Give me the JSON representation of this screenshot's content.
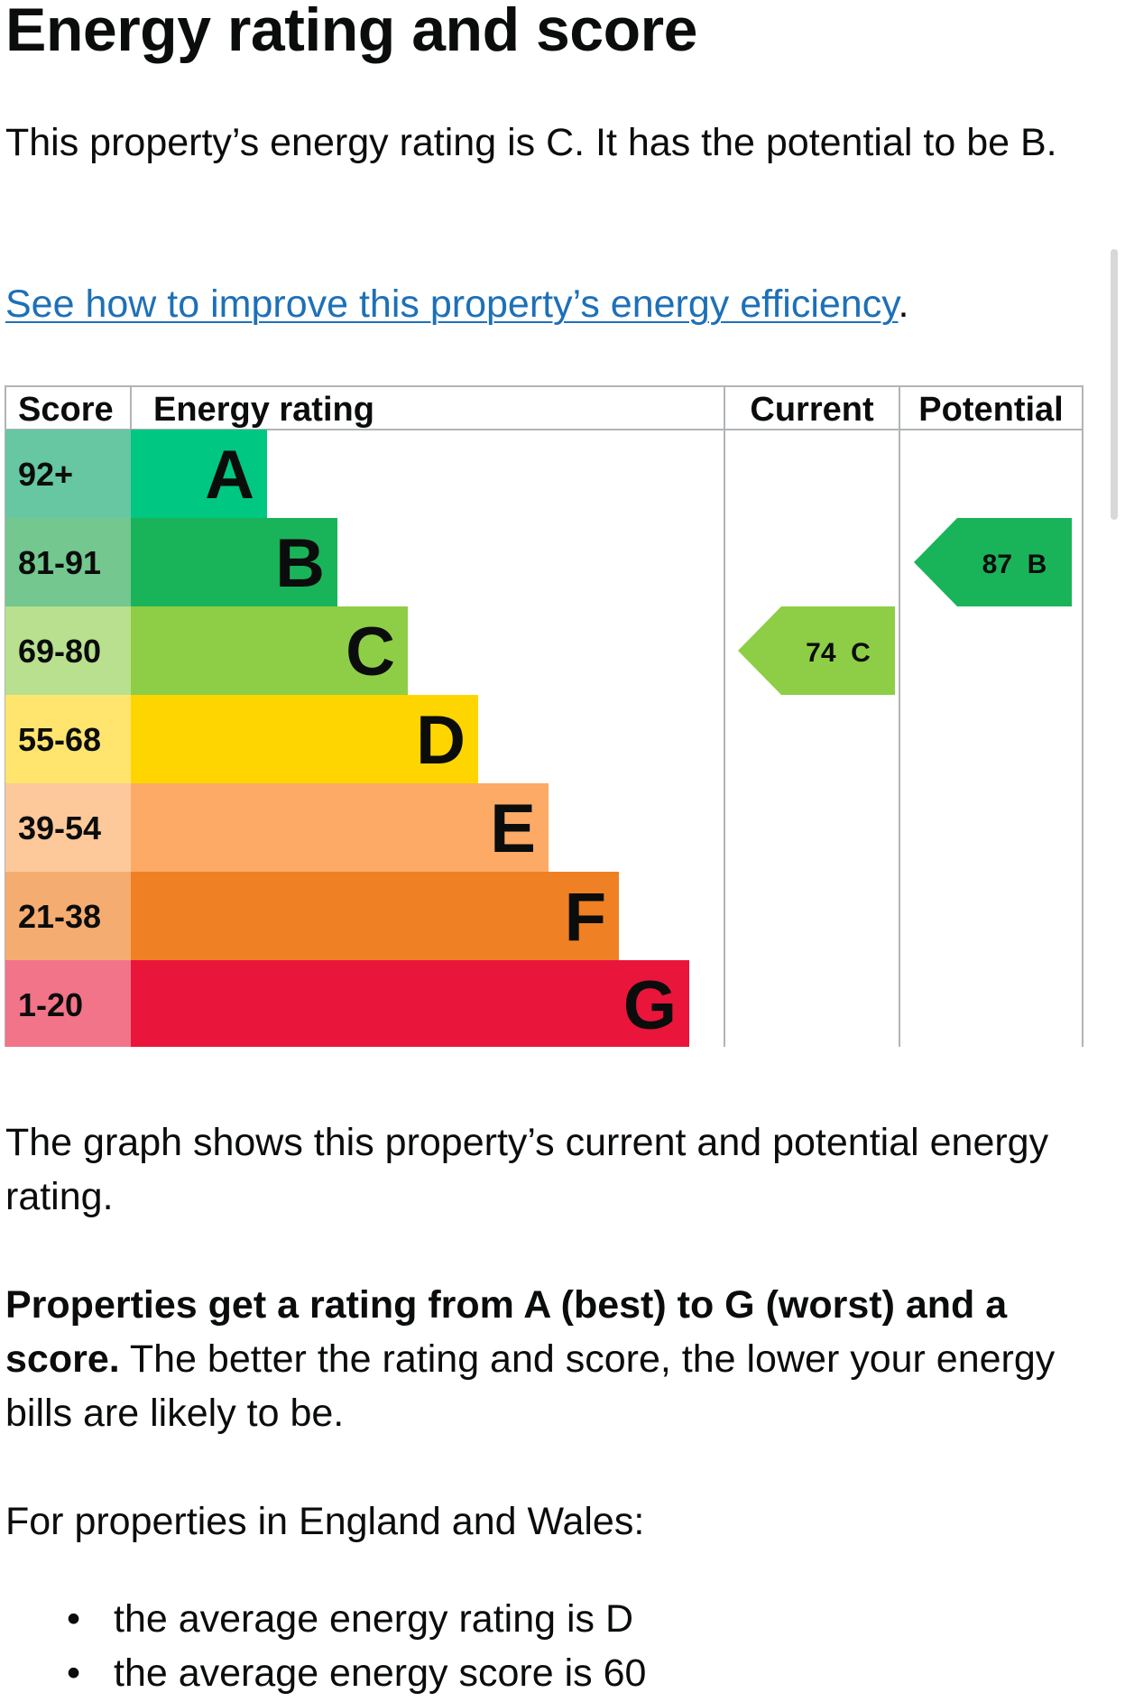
{
  "heading": "Energy rating and score",
  "intro": "This property’s energy rating is C. It has the potential to be B.",
  "improve_link": "See how to improve this property’s energy efficiency",
  "improve_link_suffix": ".",
  "graph_description": "The graph shows this property’s current and potential energy rating.",
  "ratings_bold": "Properties get a rating from A (best) to G (worst) and a score.",
  "ratings_rest": " The better the rating and score, the lower your energy bills are likely to be.",
  "england_wales_heading": "For properties in England and Wales:",
  "averages": [
    "the average energy rating is D",
    "the average energy score is 60"
  ],
  "chart_data": {
    "type": "bar",
    "headers": {
      "score": "Score",
      "rating": "Energy rating",
      "current": "Current",
      "potential": "Potential"
    },
    "bands": [
      {
        "letter": "A",
        "range": "92+",
        "color": "#00c781",
        "score_bg": "#66c7a2"
      },
      {
        "letter": "B",
        "range": "81-91",
        "color": "#19b459",
        "score_bg": "#73c78f"
      },
      {
        "letter": "C",
        "range": "69-80",
        "color": "#8dce46",
        "score_bg": "#b8e08e"
      },
      {
        "letter": "D",
        "range": "55-68",
        "color": "#ffd500",
        "score_bg": "#ffe46e"
      },
      {
        "letter": "E",
        "range": "39-54",
        "color": "#fcaa65",
        "score_bg": "#fdc99b"
      },
      {
        "letter": "F",
        "range": "21-38",
        "color": "#ef8023",
        "score_bg": "#f5ac70"
      },
      {
        "letter": "G",
        "range": "1-20",
        "color": "#e9153b",
        "score_bg": "#f27489"
      }
    ],
    "current": {
      "score": 74,
      "letter": "C",
      "label": "74  C",
      "color": "#8dce46"
    },
    "potential": {
      "score": 87,
      "letter": "B",
      "label": "87  B",
      "color": "#19b459"
    }
  }
}
